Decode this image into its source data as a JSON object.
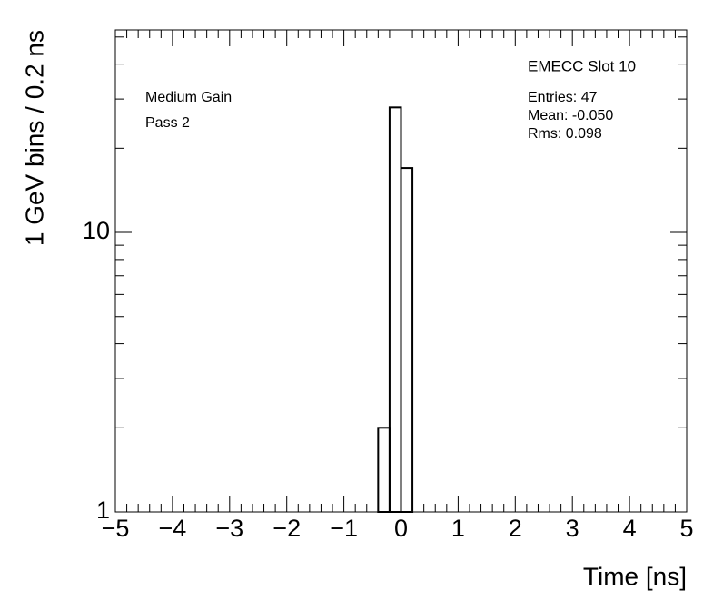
{
  "chart_data": {
    "type": "histogram",
    "bins": [
      -0.4,
      -0.2,
      0,
      0.2
    ],
    "values": [
      2,
      28,
      17
    ],
    "color": "#000000",
    "x_label": "Time [ns]",
    "y_label": "1 GeV bins / 0.2 ns",
    "xlim": [
      -5,
      5
    ],
    "ylim": [
      1,
      53
    ],
    "log_y": true,
    "xticks": [
      {
        "value": -5,
        "label": "−5"
      },
      {
        "value": -4,
        "label": "−4"
      },
      {
        "value": -3,
        "label": "−3"
      },
      {
        "value": -2,
        "label": "−2"
      },
      {
        "value": -1,
        "label": "−1"
      },
      0,
      1,
      2,
      3,
      4,
      5
    ],
    "xminorticks": [
      -4.8,
      -4.6,
      -4.4,
      -4.2,
      -3.8,
      -3.6,
      -3.4,
      -3.2,
      -2.8,
      -2.6,
      -2.4,
      -2.2,
      -1.8,
      -1.6,
      -1.4,
      -1.2,
      -0.8,
      -0.6,
      -0.4,
      -0.2,
      0.2,
      0.4,
      0.6,
      0.8,
      1.2,
      1.4,
      1.6,
      1.8,
      2.2,
      2.4,
      2.6,
      2.8,
      3.2,
      3.4,
      3.6,
      3.8,
      4.2,
      4.4,
      4.6,
      4.8
    ],
    "yticks": [
      1,
      10
    ],
    "yminorticks": [
      2,
      3,
      4,
      5,
      6,
      7,
      8,
      9,
      20,
      30,
      40,
      50
    ],
    "annotations": [
      "Medium Gain",
      "Pass 2"
    ],
    "stats_title": "EMECC Slot 10",
    "stats": [
      "Entries: 47",
      "Mean: -0.050",
      "Rms: 0.098"
    ]
  }
}
